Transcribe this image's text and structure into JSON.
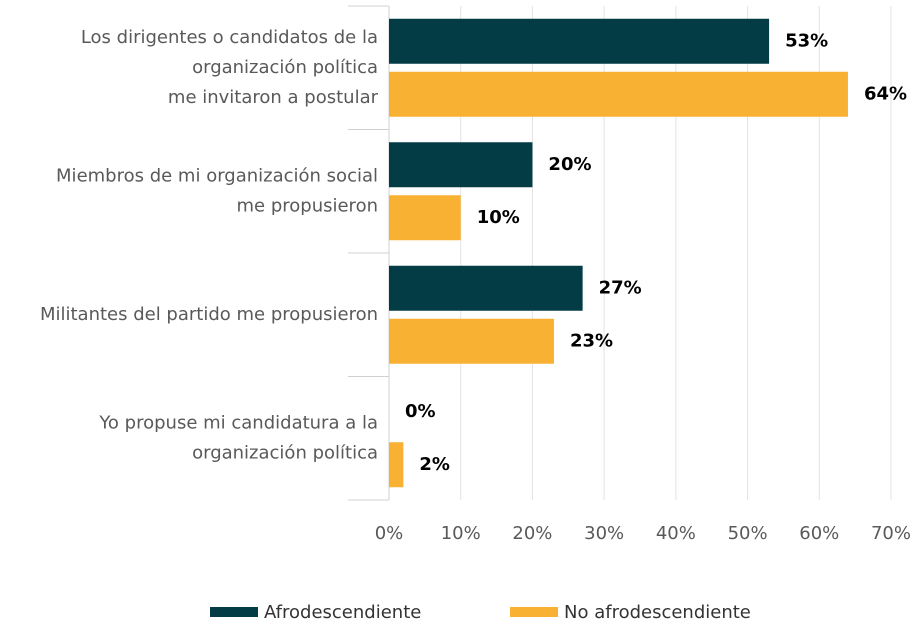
{
  "chart_data": {
    "type": "bar",
    "orientation": "horizontal",
    "categories": [
      [
        "Los dirigentes o candidatos de la",
        "organización política",
        "me invitaron a postular"
      ],
      [
        "Miembros de mi organización social",
        "me propusieron"
      ],
      [
        "Militantes del partido me propusieron"
      ],
      [
        "Yo propuse mi candidatura a la",
        "organización política"
      ]
    ],
    "series": [
      {
        "name": "Afrodescendiente",
        "color": "#033c45",
        "values": [
          53,
          20,
          27,
          0
        ],
        "value_labels": [
          "53%",
          "20%",
          "27%",
          "0%"
        ]
      },
      {
        "name": "No afrodescendiente",
        "color": "#f8b133",
        "values": [
          64,
          10,
          23,
          2
        ],
        "value_labels": [
          "64%",
          "10%",
          "23%",
          "2%"
        ]
      }
    ],
    "xlim": [
      0,
      70
    ],
    "xticks": [
      {
        "value": 0,
        "label": "0%"
      },
      {
        "value": 10,
        "label": "10%"
      },
      {
        "value": 20,
        "label": "20%"
      },
      {
        "value": 30,
        "label": "30%"
      },
      {
        "value": 40,
        "label": "40%"
      },
      {
        "value": 50,
        "label": "50%"
      },
      {
        "value": 60,
        "label": "60%"
      },
      {
        "value": 70,
        "label": "70%"
      }
    ],
    "grid": true,
    "legend": "bottom"
  }
}
